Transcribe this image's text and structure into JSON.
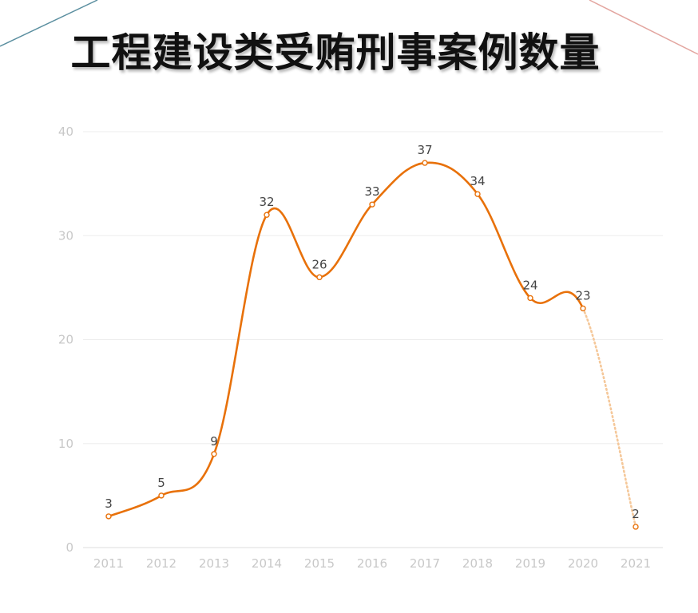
{
  "title": "工程建设类受贿刑事案例数量",
  "colors": {
    "line": "#E8710A",
    "projected": "#F5C89A",
    "grid": "#EDEDED",
    "tick": "#C8C8C8",
    "label": "#444444",
    "deco_left": "#5B8FA0",
    "deco_right": "#E3A6A0"
  },
  "chart_data": {
    "type": "line",
    "title": "",
    "xlabel": "",
    "ylabel": "",
    "ylim": [
      0,
      40
    ],
    "yticks": [
      0,
      10,
      20,
      30,
      40
    ],
    "grid": true,
    "legend": "none",
    "categories": [
      "2011",
      "2012",
      "2013",
      "2014",
      "2015",
      "2016",
      "2017",
      "2018",
      "2019",
      "2020",
      "2021"
    ],
    "values": [
      3,
      5,
      9,
      32,
      26,
      33,
      37,
      34,
      24,
      23,
      2
    ],
    "projected_from_index": 9
  }
}
